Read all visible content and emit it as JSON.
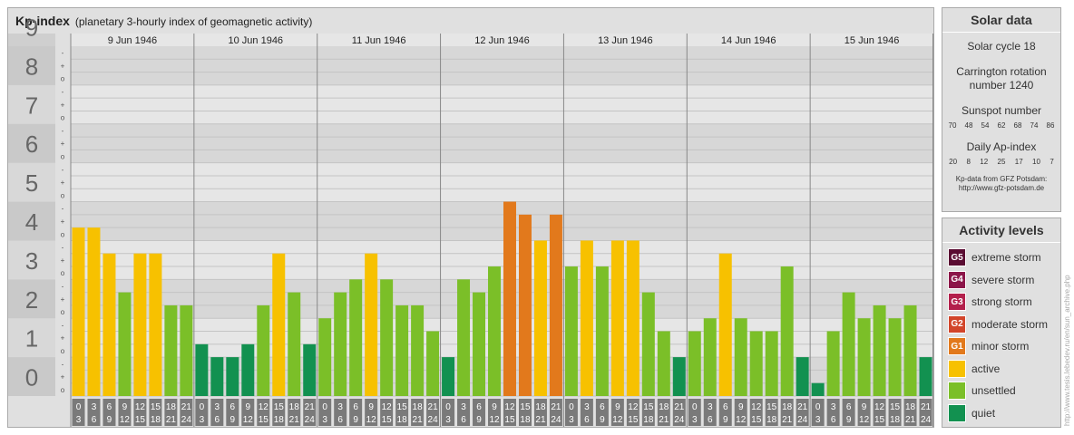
{
  "chart_data": {
    "type": "bar",
    "title": "Kp-index",
    "subtitle": "(planetary 3-hourly index of geomagnetic activity)",
    "ylim": [
      0,
      9
    ],
    "y_ticks": [
      "0",
      "1",
      "2",
      "3",
      "4",
      "5",
      "6",
      "7",
      "8",
      "9"
    ],
    "minor_ticks": [
      "o",
      "+",
      "-"
    ],
    "days": [
      "9 Jun 1946",
      "10 Jun 1946",
      "11 Jun 1946",
      "12 Jun 1946",
      "13 Jun 1946",
      "14 Jun 1946",
      "15 Jun 1946"
    ],
    "interval_labels": [
      [
        "0",
        "3"
      ],
      [
        "3",
        "6"
      ],
      [
        "6",
        "9"
      ],
      [
        "9",
        "12"
      ],
      [
        "12",
        "15"
      ],
      [
        "15",
        "18"
      ],
      [
        "18",
        "21"
      ],
      [
        "21",
        "24"
      ]
    ],
    "values": [
      [
        4.333,
        4.333,
        3.667,
        2.667,
        3.667,
        3.667,
        2.333,
        2.333
      ],
      [
        1.333,
        1.0,
        1.0,
        1.333,
        2.333,
        3.667,
        2.667,
        1.333
      ],
      [
        2.0,
        2.667,
        3.0,
        3.667,
        3.0,
        2.333,
        2.333,
        1.667
      ],
      [
        1.0,
        3.0,
        2.667,
        3.333,
        5.0,
        4.667,
        4.0,
        4.667
      ],
      [
        3.333,
        4.0,
        3.333,
        4.0,
        4.0,
        2.667,
        1.667,
        1.0
      ],
      [
        1.667,
        2.0,
        3.667,
        2.0,
        1.667,
        1.667,
        3.333,
        1.0
      ],
      [
        0.333,
        1.667,
        2.667,
        2.0,
        2.333,
        2.0,
        2.333,
        1.0
      ]
    ],
    "colors": {
      "quiet": "#129150",
      "unsettled": "#7bbf28",
      "active": "#f7c100",
      "g1": "#e2791c",
      "g2": "#d2452a",
      "g3": "#b3204c",
      "g4": "#8c1549",
      "g5": "#5a0c32"
    }
  },
  "solar": {
    "heading": "Solar data",
    "cycle": "Solar cycle 18",
    "carrington_line1": "Carrington rotation",
    "carrington_line2": "number 1240",
    "sunspot_heading": "Sunspot number",
    "sunspot": [
      "70",
      "48",
      "54",
      "62",
      "68",
      "74",
      "86"
    ],
    "ap_heading": "Daily Ap-index",
    "ap": [
      "20",
      "8",
      "12",
      "25",
      "17",
      "10",
      "7"
    ],
    "source_line1": "Kp-data from GFZ Potsdam:",
    "source_line2": "http://www.gfz-potsdam.de"
  },
  "activity": {
    "heading": "Activity levels",
    "items": [
      {
        "badge": "G5",
        "label": "extreme storm",
        "color": "#5a0c32"
      },
      {
        "badge": "G4",
        "label": "severe storm",
        "color": "#8c1549"
      },
      {
        "badge": "G3",
        "label": "strong storm",
        "color": "#b3204c"
      },
      {
        "badge": "G2",
        "label": "moderate storm",
        "color": "#d2452a"
      },
      {
        "badge": "G1",
        "label": "minor storm",
        "color": "#e2791c"
      },
      {
        "badge": "",
        "label": "active",
        "color": "#f7c100"
      },
      {
        "badge": "",
        "label": "unsettled",
        "color": "#7bbf28"
      },
      {
        "badge": "",
        "label": "quiet",
        "color": "#129150"
      }
    ]
  },
  "watermark": "http://www.tesis.lebedev.ru/en/sun_archive.php"
}
